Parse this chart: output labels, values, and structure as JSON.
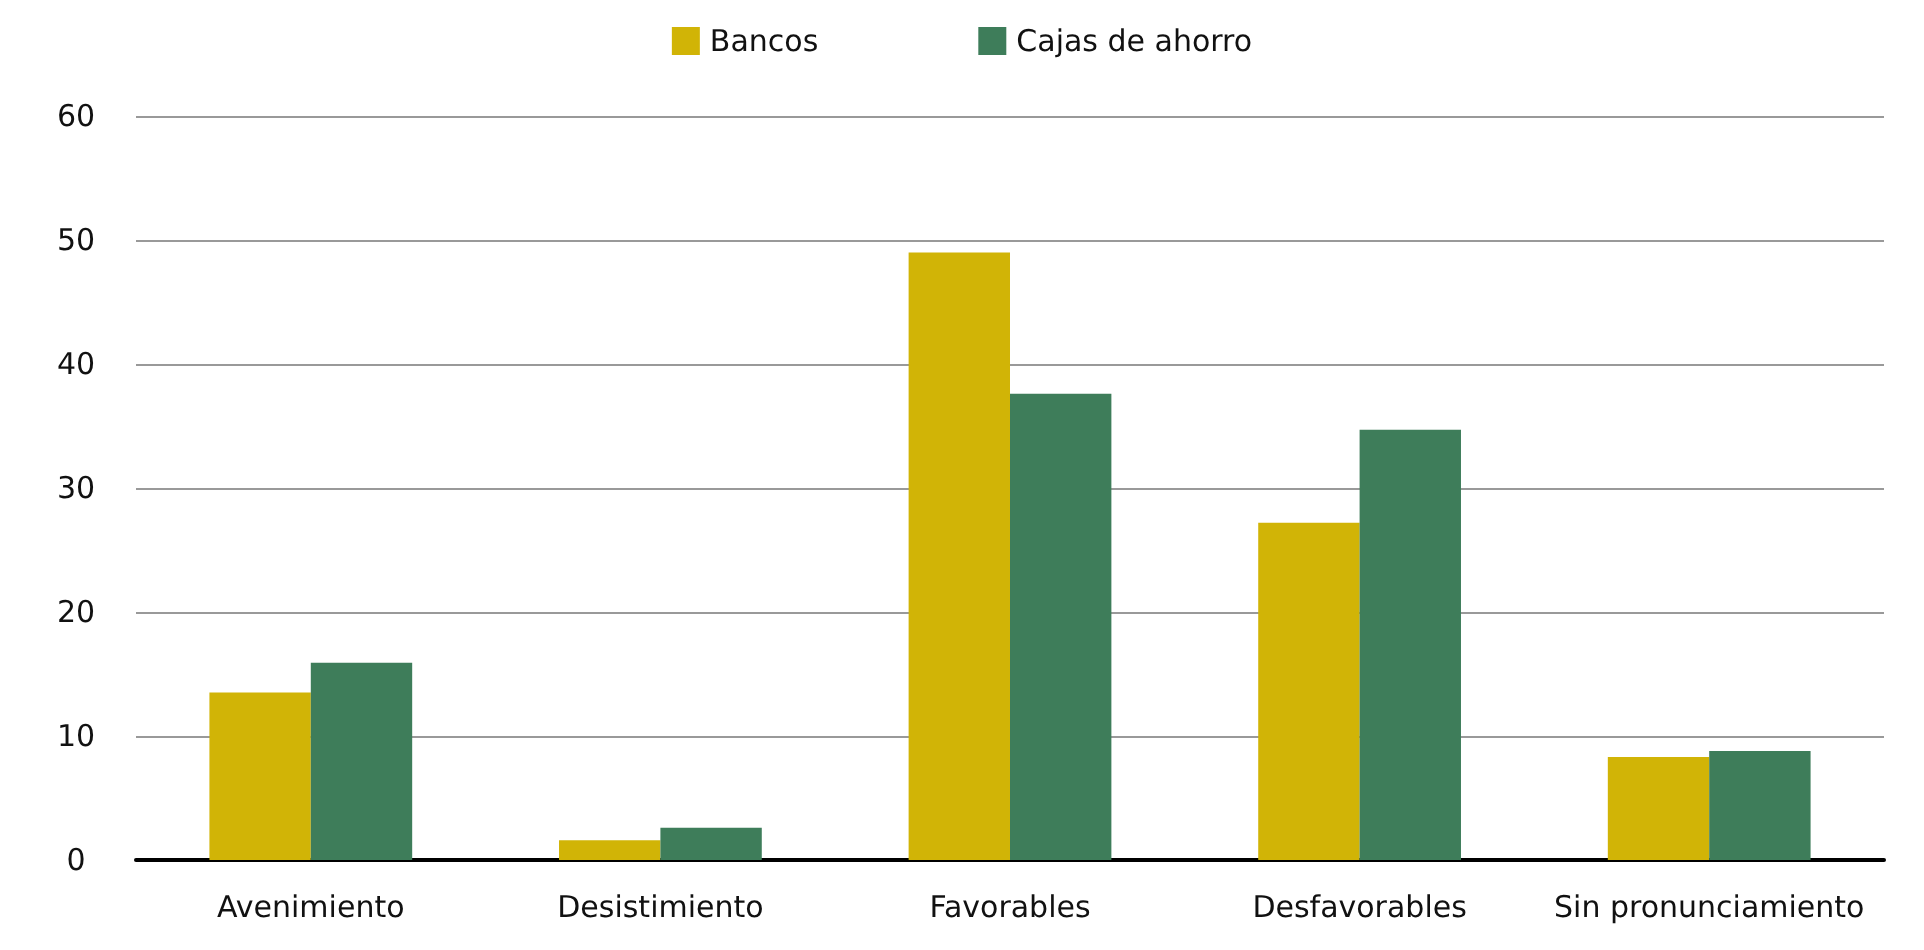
{
  "chart_data": {
    "type": "bar",
    "categories": [
      "Avenimiento",
      "Desistimiento",
      "Favorables",
      "Desfavorables",
      "Sin pronunciamiento"
    ],
    "series": [
      {
        "name": "Bancos",
        "color": "#d1b406",
        "values": [
          13.5,
          1.6,
          49.0,
          27.2,
          8.3
        ]
      },
      {
        "name": "Cajas de ahorro",
        "color": "#3e7d5a",
        "values": [
          15.9,
          2.6,
          37.6,
          34.7,
          8.8
        ]
      }
    ],
    "ylim": [
      0,
      60
    ],
    "yticks": [
      0,
      10,
      20,
      30,
      40,
      50,
      60
    ],
    "grid": "y",
    "legend": "top"
  }
}
